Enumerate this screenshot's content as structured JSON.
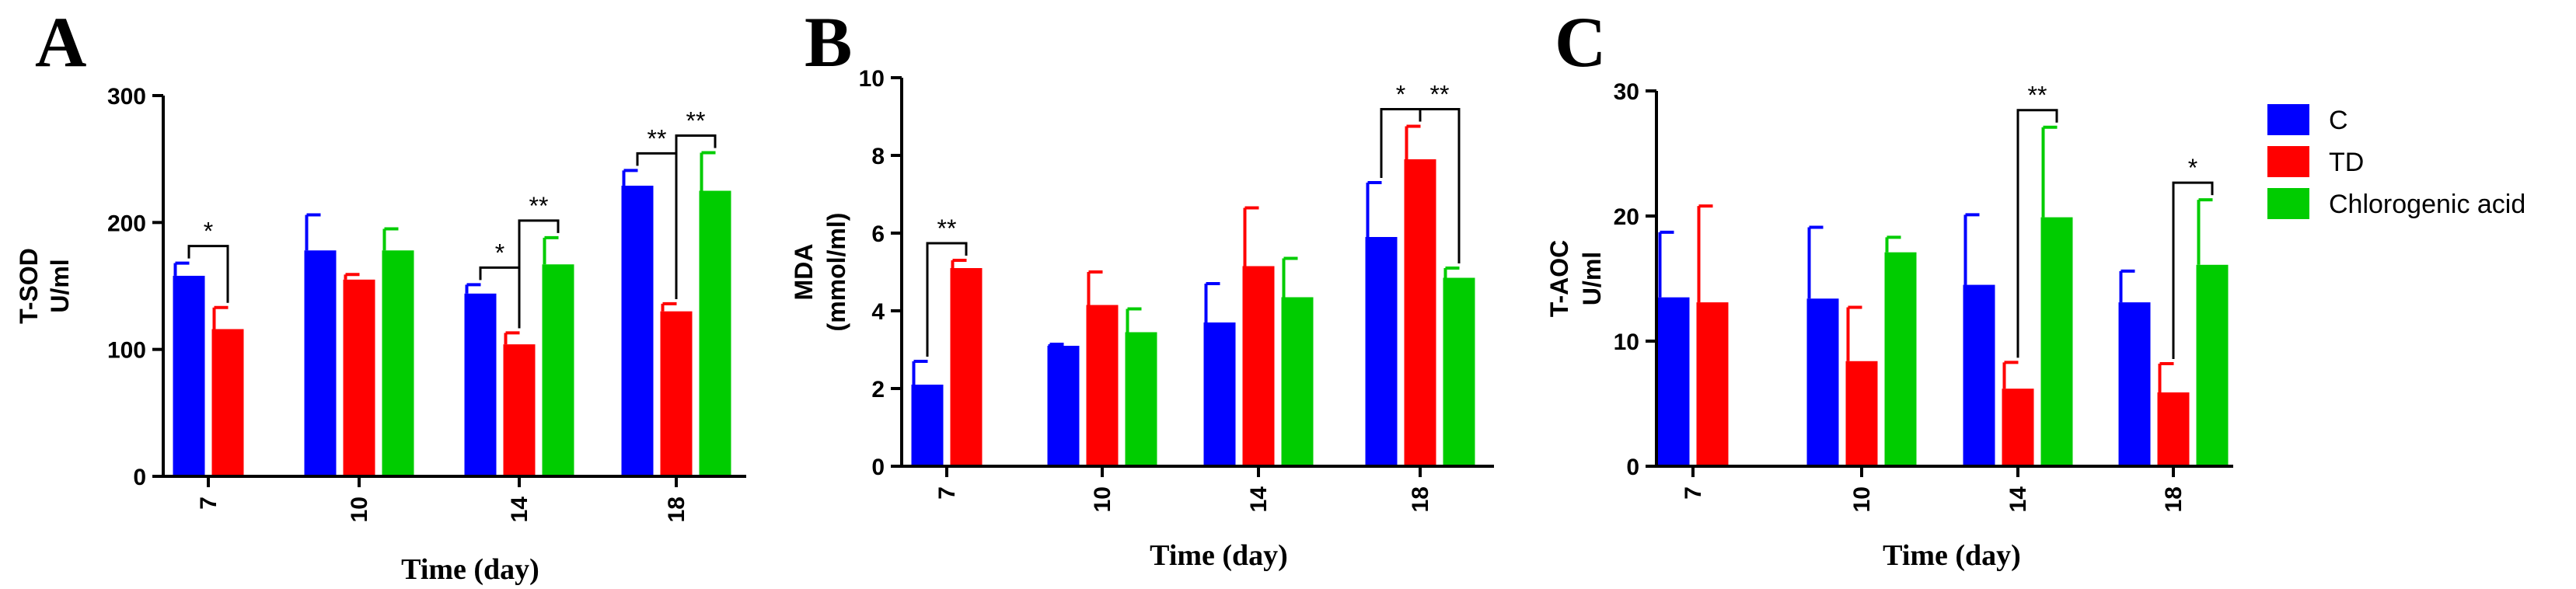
{
  "legend": [
    {
      "name": "C",
      "color": "#0000ff"
    },
    {
      "name": "TD",
      "color": "#ff0000"
    },
    {
      "name": "Chlorogenic acid",
      "color": "#00cc00"
    }
  ],
  "chart_data": [
    {
      "type": "bar",
      "panel": "A",
      "ylabel": [
        "T-SOD",
        "U/ml"
      ],
      "xlabel": "Time (day)",
      "ylim": [
        0,
        300
      ],
      "yticks": [
        0,
        100,
        200,
        300
      ],
      "categories": [
        "7",
        "10",
        "14",
        "18"
      ],
      "series": [
        {
          "name": "C",
          "color": "#0000ff",
          "values": [
            158,
            178,
            144,
            229
          ],
          "errors": [
            10,
            28,
            7,
            12
          ]
        },
        {
          "name": "TD",
          "color": "#ff0000",
          "values": [
            116,
            155,
            104,
            130
          ],
          "errors": [
            17,
            4,
            9,
            6
          ]
        },
        {
          "name": "Chlorogenic acid",
          "color": "#00cc00",
          "values": [
            null,
            178,
            167,
            225
          ],
          "errors": [
            null,
            17,
            21,
            30
          ]
        }
      ],
      "annotations": [
        {
          "cat": 0,
          "from": 0,
          "to": 1,
          "label": "*"
        },
        {
          "cat": 2,
          "from": 0,
          "to": 1,
          "label": "*"
        },
        {
          "cat": 2,
          "from": 1,
          "to": 2,
          "label": "**"
        },
        {
          "cat": 3,
          "from": 0,
          "to": 1,
          "label": "**"
        },
        {
          "cat": 3,
          "from": 1,
          "to": 2,
          "label": "**"
        }
      ]
    },
    {
      "type": "bar",
      "panel": "B",
      "ylabel": [
        "MDA",
        "(mmol/ml)"
      ],
      "xlabel": "Time (day)",
      "ylim": [
        0,
        10
      ],
      "yticks": [
        0,
        2,
        4,
        6,
        8,
        10
      ],
      "categories": [
        "7",
        "10",
        "14",
        "18"
      ],
      "series": [
        {
          "name": "C",
          "color": "#0000ff",
          "values": [
            2.1,
            3.1,
            3.7,
            5.9
          ],
          "errors": [
            0.6,
            0.04,
            1.0,
            1.4
          ]
        },
        {
          "name": "TD",
          "color": "#ff0000",
          "values": [
            5.1,
            4.15,
            5.15,
            7.9
          ],
          "errors": [
            0.2,
            0.85,
            1.5,
            0.85
          ]
        },
        {
          "name": "Chlorogenic acid",
          "color": "#00cc00",
          "values": [
            null,
            3.45,
            4.35,
            4.85
          ],
          "errors": [
            null,
            0.6,
            1.0,
            0.25
          ]
        }
      ],
      "annotations": [
        {
          "cat": 0,
          "from": 0,
          "to": 1,
          "label": "**"
        },
        {
          "cat": 3,
          "from": 0,
          "to": 1,
          "label": "*"
        },
        {
          "cat": 3,
          "from": 1,
          "to": 2,
          "label": "**"
        }
      ]
    },
    {
      "type": "bar",
      "panel": "C",
      "ylabel": [
        "T-AOC",
        "U/ml"
      ],
      "xlabel": "Time (day)",
      "ylim": [
        0,
        30
      ],
      "yticks": [
        0,
        10,
        20,
        30
      ],
      "categories": [
        "7",
        "10",
        "14",
        "18"
      ],
      "series": [
        {
          "name": "C",
          "color": "#0000ff",
          "values": [
            13.5,
            13.4,
            14.5,
            13.1
          ],
          "errors": [
            5.2,
            5.7,
            5.6,
            2.5
          ]
        },
        {
          "name": "TD",
          "color": "#ff0000",
          "values": [
            13.1,
            8.4,
            6.2,
            5.9
          ],
          "errors": [
            7.7,
            4.3,
            2.1,
            2.3
          ]
        },
        {
          "name": "Chlorogenic acid",
          "color": "#00cc00",
          "values": [
            null,
            17.1,
            19.9,
            16.1
          ],
          "errors": [
            null,
            1.2,
            7.2,
            5.2
          ]
        }
      ],
      "annotations": [
        {
          "cat": 2,
          "from": 1,
          "to": 2,
          "label": "**"
        },
        {
          "cat": 3,
          "from": 1,
          "to": 2,
          "label": "*"
        }
      ]
    }
  ]
}
